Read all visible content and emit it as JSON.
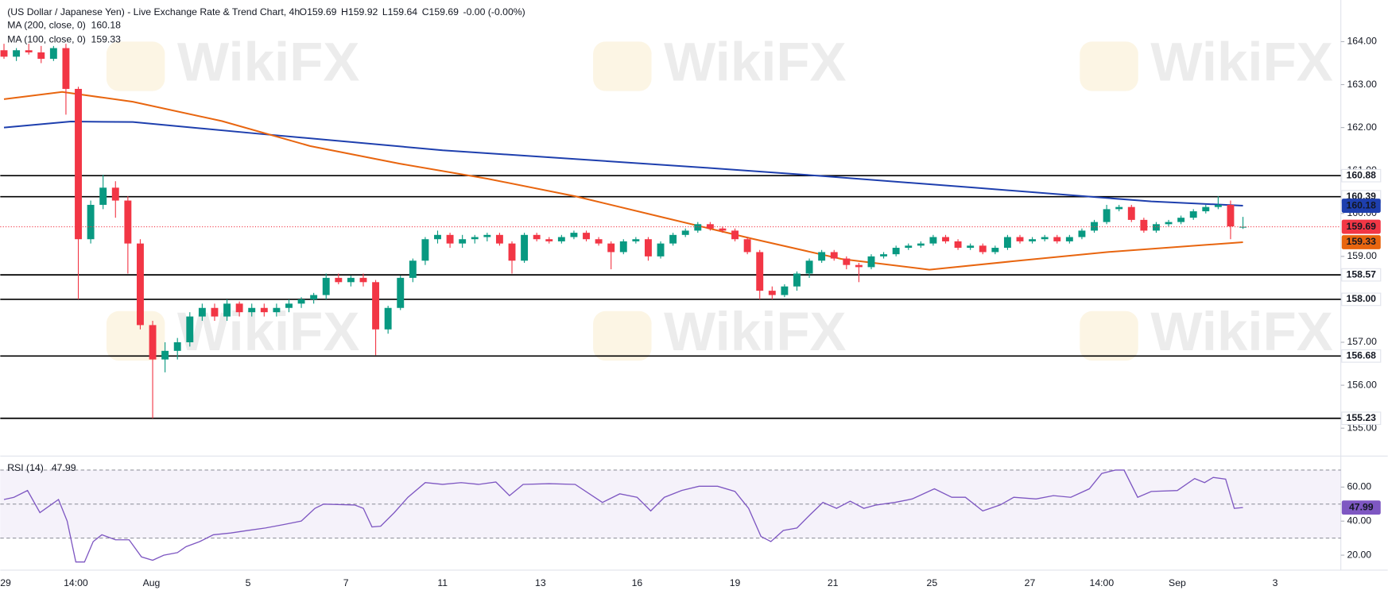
{
  "chart_data": {
    "type": "candlestick",
    "title": "(US Dollar / Japanese Yen) - Live Exchange Rate & Trend Chart, 4h",
    "ohlc_labels": [
      "O159.69",
      "H159.92",
      "L159.64",
      "C159.69",
      "-0.00 (-0.00%)"
    ],
    "watermark": "WikiFX",
    "up_color": "#089981",
    "down_color": "#f23645",
    "candles": [
      [
        163.8,
        163.95,
        163.6,
        163.65
      ],
      [
        163.65,
        163.85,
        163.55,
        163.8
      ],
      [
        163.8,
        163.95,
        163.7,
        163.75
      ],
      [
        163.75,
        163.9,
        163.5,
        163.6
      ],
      [
        163.6,
        163.9,
        163.55,
        163.85
      ],
      [
        163.85,
        163.95,
        162.3,
        162.9
      ],
      [
        162.9,
        162.95,
        158.0,
        159.4
      ],
      [
        159.4,
        160.3,
        159.3,
        160.2
      ],
      [
        160.2,
        160.9,
        160.1,
        160.6
      ],
      [
        160.6,
        160.75,
        159.9,
        160.3
      ],
      [
        160.3,
        160.4,
        158.6,
        159.3
      ],
      [
        159.3,
        159.4,
        157.3,
        157.4
      ],
      [
        157.4,
        157.5,
        155.23,
        156.6
      ],
      [
        156.6,
        157.0,
        156.3,
        156.8
      ],
      [
        156.8,
        157.1,
        156.6,
        157.0
      ],
      [
        157.0,
        157.7,
        156.9,
        157.6
      ],
      [
        157.6,
        157.9,
        157.5,
        157.8
      ],
      [
        157.8,
        157.9,
        157.5,
        157.6
      ],
      [
        157.6,
        158.0,
        157.5,
        157.9
      ],
      [
        157.9,
        157.95,
        157.6,
        157.7
      ],
      [
        157.7,
        157.9,
        157.6,
        157.8
      ],
      [
        157.8,
        157.9,
        157.6,
        157.7
      ],
      [
        157.7,
        157.9,
        157.6,
        157.8
      ],
      [
        157.8,
        158.0,
        157.7,
        157.9
      ],
      [
        157.9,
        158.05,
        157.8,
        158.0
      ],
      [
        158.0,
        158.15,
        157.9,
        158.1
      ],
      [
        158.1,
        158.6,
        158.0,
        158.5
      ],
      [
        158.5,
        158.6,
        158.35,
        158.4
      ],
      [
        158.4,
        158.55,
        158.3,
        158.5
      ],
      [
        158.5,
        158.6,
        158.3,
        158.4
      ],
      [
        158.4,
        158.45,
        156.7,
        157.3
      ],
      [
        157.3,
        157.85,
        157.2,
        157.8
      ],
      [
        157.8,
        158.55,
        157.75,
        158.5
      ],
      [
        158.5,
        158.95,
        158.4,
        158.9
      ],
      [
        158.9,
        159.45,
        158.8,
        159.4
      ],
      [
        159.4,
        159.6,
        159.3,
        159.5
      ],
      [
        159.5,
        159.55,
        159.2,
        159.3
      ],
      [
        159.3,
        159.5,
        159.2,
        159.4
      ],
      [
        159.4,
        159.5,
        159.3,
        159.45
      ],
      [
        159.45,
        159.55,
        159.35,
        159.5
      ],
      [
        159.5,
        159.55,
        159.25,
        159.3
      ],
      [
        159.3,
        159.35,
        158.6,
        158.9
      ],
      [
        158.9,
        159.55,
        158.85,
        159.5
      ],
      [
        159.5,
        159.55,
        159.35,
        159.4
      ],
      [
        159.4,
        159.45,
        159.3,
        159.35
      ],
      [
        159.35,
        159.5,
        159.3,
        159.45
      ],
      [
        159.45,
        159.6,
        159.4,
        159.55
      ],
      [
        159.55,
        159.6,
        159.35,
        159.4
      ],
      [
        159.4,
        159.45,
        159.25,
        159.3
      ],
      [
        159.3,
        159.35,
        158.7,
        159.1
      ],
      [
        159.1,
        159.4,
        159.05,
        159.35
      ],
      [
        159.35,
        159.45,
        159.3,
        159.4
      ],
      [
        159.4,
        159.45,
        158.9,
        159.0
      ],
      [
        159.0,
        159.35,
        158.95,
        159.3
      ],
      [
        159.3,
        159.55,
        159.25,
        159.5
      ],
      [
        159.5,
        159.65,
        159.45,
        159.6
      ],
      [
        159.6,
        159.8,
        159.55,
        159.75
      ],
      [
        159.75,
        159.8,
        159.6,
        159.65
      ],
      [
        159.65,
        159.7,
        159.55,
        159.6
      ],
      [
        159.6,
        159.65,
        159.35,
        159.4
      ],
      [
        159.4,
        159.45,
        159.05,
        159.1
      ],
      [
        159.1,
        159.15,
        158.0,
        158.2
      ],
      [
        158.2,
        158.3,
        158.0,
        158.1
      ],
      [
        158.1,
        158.35,
        158.05,
        158.3
      ],
      [
        158.3,
        158.65,
        158.2,
        158.6
      ],
      [
        158.6,
        158.95,
        158.5,
        158.9
      ],
      [
        158.9,
        159.15,
        158.85,
        159.1
      ],
      [
        159.1,
        159.15,
        158.9,
        158.95
      ],
      [
        158.95,
        159.0,
        158.7,
        158.8
      ],
      [
        158.8,
        158.85,
        158.4,
        158.75
      ],
      [
        158.75,
        159.05,
        158.7,
        159.0
      ],
      [
        159.0,
        159.1,
        158.95,
        159.05
      ],
      [
        159.05,
        159.25,
        159.0,
        159.2
      ],
      [
        159.2,
        159.3,
        159.15,
        159.25
      ],
      [
        159.25,
        159.35,
        159.2,
        159.3
      ],
      [
        159.3,
        159.5,
        159.25,
        159.45
      ],
      [
        159.45,
        159.5,
        159.3,
        159.35
      ],
      [
        159.35,
        159.4,
        159.15,
        159.2
      ],
      [
        159.2,
        159.3,
        159.15,
        159.25
      ],
      [
        159.25,
        159.3,
        159.05,
        159.1
      ],
      [
        159.1,
        159.25,
        159.05,
        159.2
      ],
      [
        159.2,
        159.5,
        159.15,
        159.45
      ],
      [
        159.45,
        159.5,
        159.3,
        159.35
      ],
      [
        159.35,
        159.45,
        159.3,
        159.4
      ],
      [
        159.4,
        159.5,
        159.35,
        159.45
      ],
      [
        159.45,
        159.5,
        159.3,
        159.35
      ],
      [
        159.35,
        159.5,
        159.3,
        159.45
      ],
      [
        159.45,
        159.65,
        159.4,
        159.6
      ],
      [
        159.6,
        159.85,
        159.55,
        159.8
      ],
      [
        159.8,
        160.2,
        159.75,
        160.1
      ],
      [
        160.1,
        160.2,
        160.05,
        160.15
      ],
      [
        160.15,
        160.2,
        159.8,
        159.85
      ],
      [
        159.85,
        159.9,
        159.55,
        159.6
      ],
      [
        159.6,
        159.8,
        159.55,
        159.75
      ],
      [
        159.75,
        159.85,
        159.7,
        159.8
      ],
      [
        159.8,
        159.95,
        159.75,
        159.9
      ],
      [
        159.9,
        160.1,
        159.85,
        160.05
      ],
      [
        160.05,
        160.2,
        160.0,
        160.15
      ],
      [
        160.15,
        160.4,
        160.1,
        160.2
      ],
      [
        160.2,
        160.3,
        159.4,
        159.7
      ],
      [
        159.69,
        159.92,
        159.64,
        159.69
      ]
    ],
    "xlim": [
      -0.3,
      107.9
    ],
    "xticks": [
      {
        "value": 0,
        "label": "29"
      },
      {
        "value": 5.8,
        "label": "14:00"
      },
      {
        "value": 11.9,
        "label": "Aug"
      },
      {
        "value": 19.7,
        "label": "5"
      },
      {
        "value": 27.6,
        "label": "7"
      },
      {
        "value": 35.4,
        "label": "11"
      },
      {
        "value": 43.3,
        "label": "13"
      },
      {
        "value": 51.1,
        "label": "16"
      },
      {
        "value": 59,
        "label": "19"
      },
      {
        "value": 66.9,
        "label": "21"
      },
      {
        "value": 74.9,
        "label": "25"
      },
      {
        "value": 82.8,
        "label": "27"
      },
      {
        "value": 88.6,
        "label": "14:00"
      },
      {
        "value": 94.7,
        "label": "Sep"
      },
      {
        "value": 102.6,
        "label": "3"
      }
    ],
    "ylim": [
      154.37,
      164.97
    ],
    "yticks": [
      {
        "value": 155,
        "label": "155.00"
      },
      {
        "value": 156,
        "label": "156.00"
      },
      {
        "value": 157,
        "label": "157.00"
      },
      {
        "value": 158,
        "label": "158.00"
      },
      {
        "value": 159,
        "label": "159.00"
      },
      {
        "value": 160,
        "label": "160.00"
      },
      {
        "value": 161,
        "label": "161.00"
      },
      {
        "value": 162,
        "label": "162.00"
      },
      {
        "value": 163,
        "label": "163.00"
      },
      {
        "value": 164,
        "label": "164.00"
      }
    ],
    "levels": [
      {
        "value": 160.88,
        "label": "160.88"
      },
      {
        "value": 160.39,
        "label": "160.39"
      },
      {
        "value": 158.57,
        "label": "158.57"
      },
      {
        "value": 158,
        "label": "158.00"
      },
      {
        "value": 156.68,
        "label": "156.68"
      },
      {
        "value": 155.23,
        "label": "155.23"
      }
    ],
    "level_color": "#000000",
    "series": [
      {
        "name": "MA (200, close, 0)",
        "color": "#1e3fae",
        "x": [
          0,
          5.4,
          10.4,
          20.4,
          35.4,
          56.9,
          66.1,
          78.3,
          92.6,
          100
        ],
        "values": [
          162.0,
          162.14,
          162.13,
          161.86,
          161.47,
          161.06,
          160.87,
          160.6,
          160.28,
          160.18
        ]
      },
      {
        "name": "MA (100, close, 0)",
        "color": "#e8650f",
        "x": [
          0,
          4.7,
          10.4,
          17.6,
          24.7,
          31.9,
          39,
          46.1,
          53.3,
          60.4,
          67.6,
          74.7,
          81.9,
          89,
          100
        ],
        "values": [
          162.66,
          162.83,
          162.6,
          162.15,
          161.57,
          161.16,
          160.81,
          160.4,
          159.9,
          159.41,
          158.94,
          158.69,
          158.9,
          159.1,
          159.33
        ]
      }
    ],
    "rsi": {
      "name": "RSI (14)",
      "color": "#7e57c2",
      "x": [
        0,
        0.8,
        1.9,
        2.9,
        4.4,
        5.1,
        5.8,
        6.5,
        7.2,
        7.9,
        9,
        10.1,
        11.1,
        12,
        12.9,
        14,
        14.7,
        15.8,
        16.9,
        18.3,
        19.7,
        21.1,
        22.6,
        24,
        25.1,
        25.8,
        28.3,
        29,
        29.7,
        30.4,
        31.5,
        32.6,
        34,
        35.4,
        36.9,
        38.3,
        39.7,
        40.8,
        41.9,
        44,
        46.1,
        48.3,
        49.7,
        51.1,
        52.2,
        53.3,
        54.7,
        56.1,
        57.6,
        59,
        60.1,
        61.1,
        61.9,
        62.9,
        64,
        65.1,
        66.1,
        67.2,
        68.3,
        69.4,
        70.4,
        71.9,
        73.3,
        75.1,
        76.5,
        77.6,
        79,
        80.4,
        81.5,
        83.3,
        84.7,
        86.1,
        87.6,
        88.6,
        89.7,
        90.4,
        91.5,
        92.6,
        94.7,
        96.1,
        96.9,
        97.6,
        98.6,
        99.3,
        100
      ],
      "values": [
        52.7,
        54,
        58,
        45,
        52.7,
        40,
        16,
        16,
        28,
        32,
        29,
        29,
        19,
        17,
        20,
        21.5,
        25,
        28,
        32,
        33,
        34.5,
        36,
        38,
        40,
        47.5,
        50,
        49.5,
        47.5,
        36.6,
        37,
        45,
        54,
        62.6,
        61.6,
        62.6,
        61.6,
        63,
        55,
        61.6,
        62,
        61.6,
        51,
        56,
        54,
        46,
        54,
        58,
        60.5,
        60.5,
        57.4,
        47.5,
        31,
        28,
        34.5,
        36,
        44,
        51,
        47.5,
        51.7,
        47.5,
        49.5,
        51,
        53,
        59,
        54,
        54,
        46,
        49.5,
        54,
        53,
        55,
        54,
        59,
        68,
        70,
        70,
        54,
        57.4,
        58,
        65,
        62.6,
        65.7,
        64.7,
        47.5,
        47.99
      ],
      "ylim": [
        11.2,
        78.2
      ],
      "yticks": [
        {
          "value": 20,
          "label": "20.00"
        },
        {
          "value": 40,
          "label": "40.00"
        },
        {
          "value": 60,
          "label": "60.00"
        }
      ],
      "bands": [
        30,
        70
      ],
      "midline": 50
    }
  }
}
